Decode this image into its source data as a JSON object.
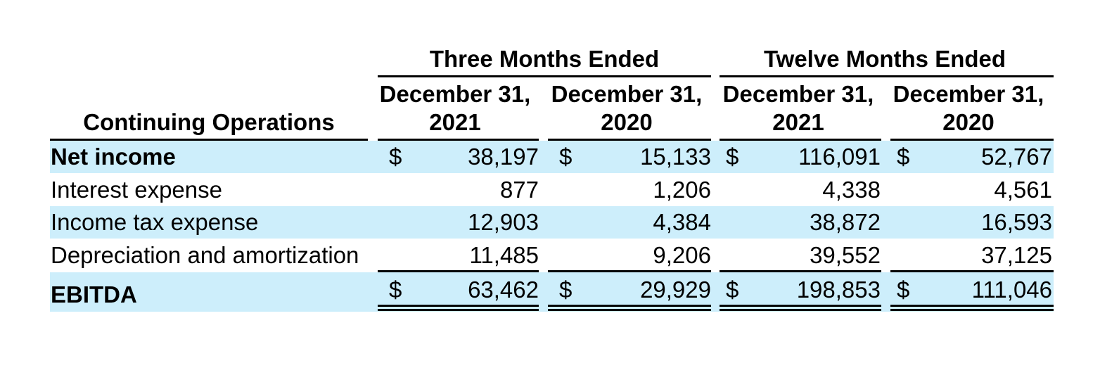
{
  "table": {
    "stub_header": "Continuing Operations",
    "group_headers": [
      "Three Months Ended",
      "Twelve Months Ended"
    ],
    "columns": [
      {
        "line1": "December 31,",
        "line2": "2021"
      },
      {
        "line1": "December 31,",
        "line2": "2020"
      },
      {
        "line1": "December 31,",
        "line2": "2021"
      },
      {
        "line1": "December 31,",
        "line2": "2020"
      }
    ],
    "currency_symbol": "$",
    "rows": [
      {
        "label": "Net income",
        "bold": true,
        "shaded": true,
        "currency": true,
        "values": [
          "38,197",
          "15,133",
          "116,091",
          "52,767"
        ]
      },
      {
        "label": "Interest expense",
        "bold": false,
        "shaded": false,
        "currency": false,
        "values": [
          "877",
          "1,206",
          "4,338",
          "4,561"
        ]
      },
      {
        "label": "Income tax expense",
        "bold": false,
        "shaded": true,
        "currency": false,
        "values": [
          "12,903",
          "4,384",
          "38,872",
          "16,593"
        ]
      },
      {
        "label": "Depreciation and amortization",
        "bold": false,
        "shaded": false,
        "currency": false,
        "values": [
          "11,485",
          "9,206",
          "39,552",
          "37,125"
        ]
      },
      {
        "label": "EBITDA",
        "bold": true,
        "shaded": true,
        "currency": true,
        "values": [
          "63,462",
          "29,929",
          "198,853",
          "111,046"
        ]
      }
    ]
  },
  "colors": {
    "row_shading": "#cdeefb",
    "text": "#000000",
    "rules": "#000000"
  }
}
